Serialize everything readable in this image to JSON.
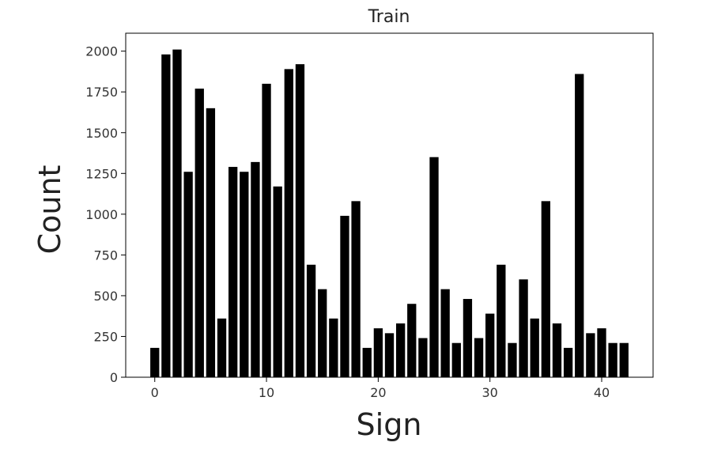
{
  "chart_data": {
    "type": "bar",
    "title": "Train",
    "xlabel": "Sign",
    "ylabel": "Count",
    "x": [
      0,
      1,
      2,
      3,
      4,
      5,
      6,
      7,
      8,
      9,
      10,
      11,
      12,
      13,
      14,
      15,
      16,
      17,
      18,
      19,
      20,
      21,
      22,
      23,
      24,
      25,
      26,
      27,
      28,
      29,
      30,
      31,
      32,
      33,
      34,
      35,
      36,
      37,
      38,
      39,
      40,
      41,
      42
    ],
    "values": [
      180,
      1980,
      2010,
      1260,
      1770,
      1650,
      360,
      1290,
      1260,
      1320,
      1800,
      1170,
      1890,
      1920,
      690,
      540,
      360,
      990,
      1080,
      180,
      300,
      270,
      330,
      450,
      240,
      1350,
      540,
      210,
      480,
      240,
      390,
      690,
      210,
      600,
      360,
      1080,
      330,
      180,
      1860,
      270,
      300,
      210,
      210
    ],
    "xlim": [
      -2.6,
      44.6
    ],
    "ylim": [
      0,
      2110
    ],
    "xticks": [
      "0",
      "10",
      "20",
      "30",
      "40"
    ],
    "yticks": [
      "0",
      "250",
      "500",
      "750",
      "1000",
      "1250",
      "1500",
      "1750",
      "2000"
    ],
    "bar_color": "#000000",
    "grid": false,
    "legend": "none"
  }
}
